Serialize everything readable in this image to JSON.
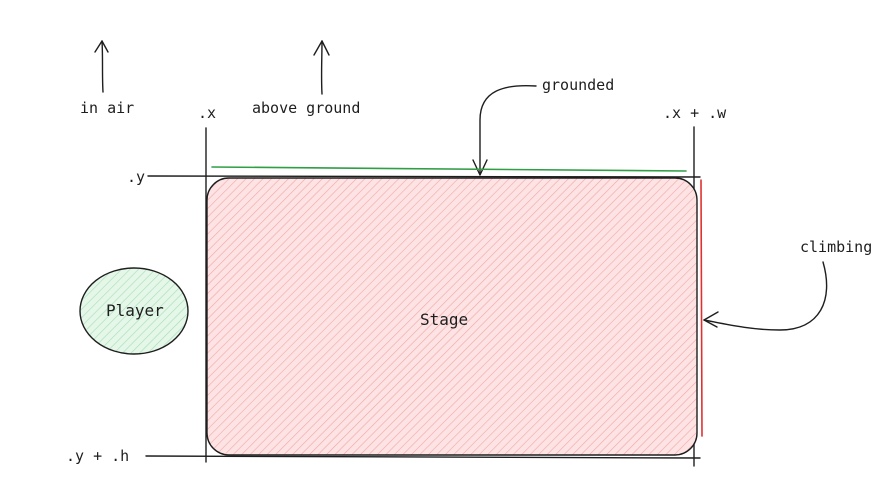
{
  "labels": {
    "in_air": "in air",
    "above_ground": "above ground",
    "grounded": "grounded",
    "x": ".x",
    "x_plus_w": ".x + .w",
    "y": ".y",
    "y_plus_h": ".y + .h",
    "climbing": "climbing",
    "player": "Player",
    "stage": "Stage"
  },
  "colors": {
    "stroke": "#1e1e1e",
    "stage_fill": "#ffc9c9",
    "stage_hatch": "#f4a3a3",
    "player_fill": "#c9f0d2",
    "player_hatch": "#a6dcb3",
    "grounded_line": "#2f9e44",
    "climbing_line": "#e03131"
  }
}
